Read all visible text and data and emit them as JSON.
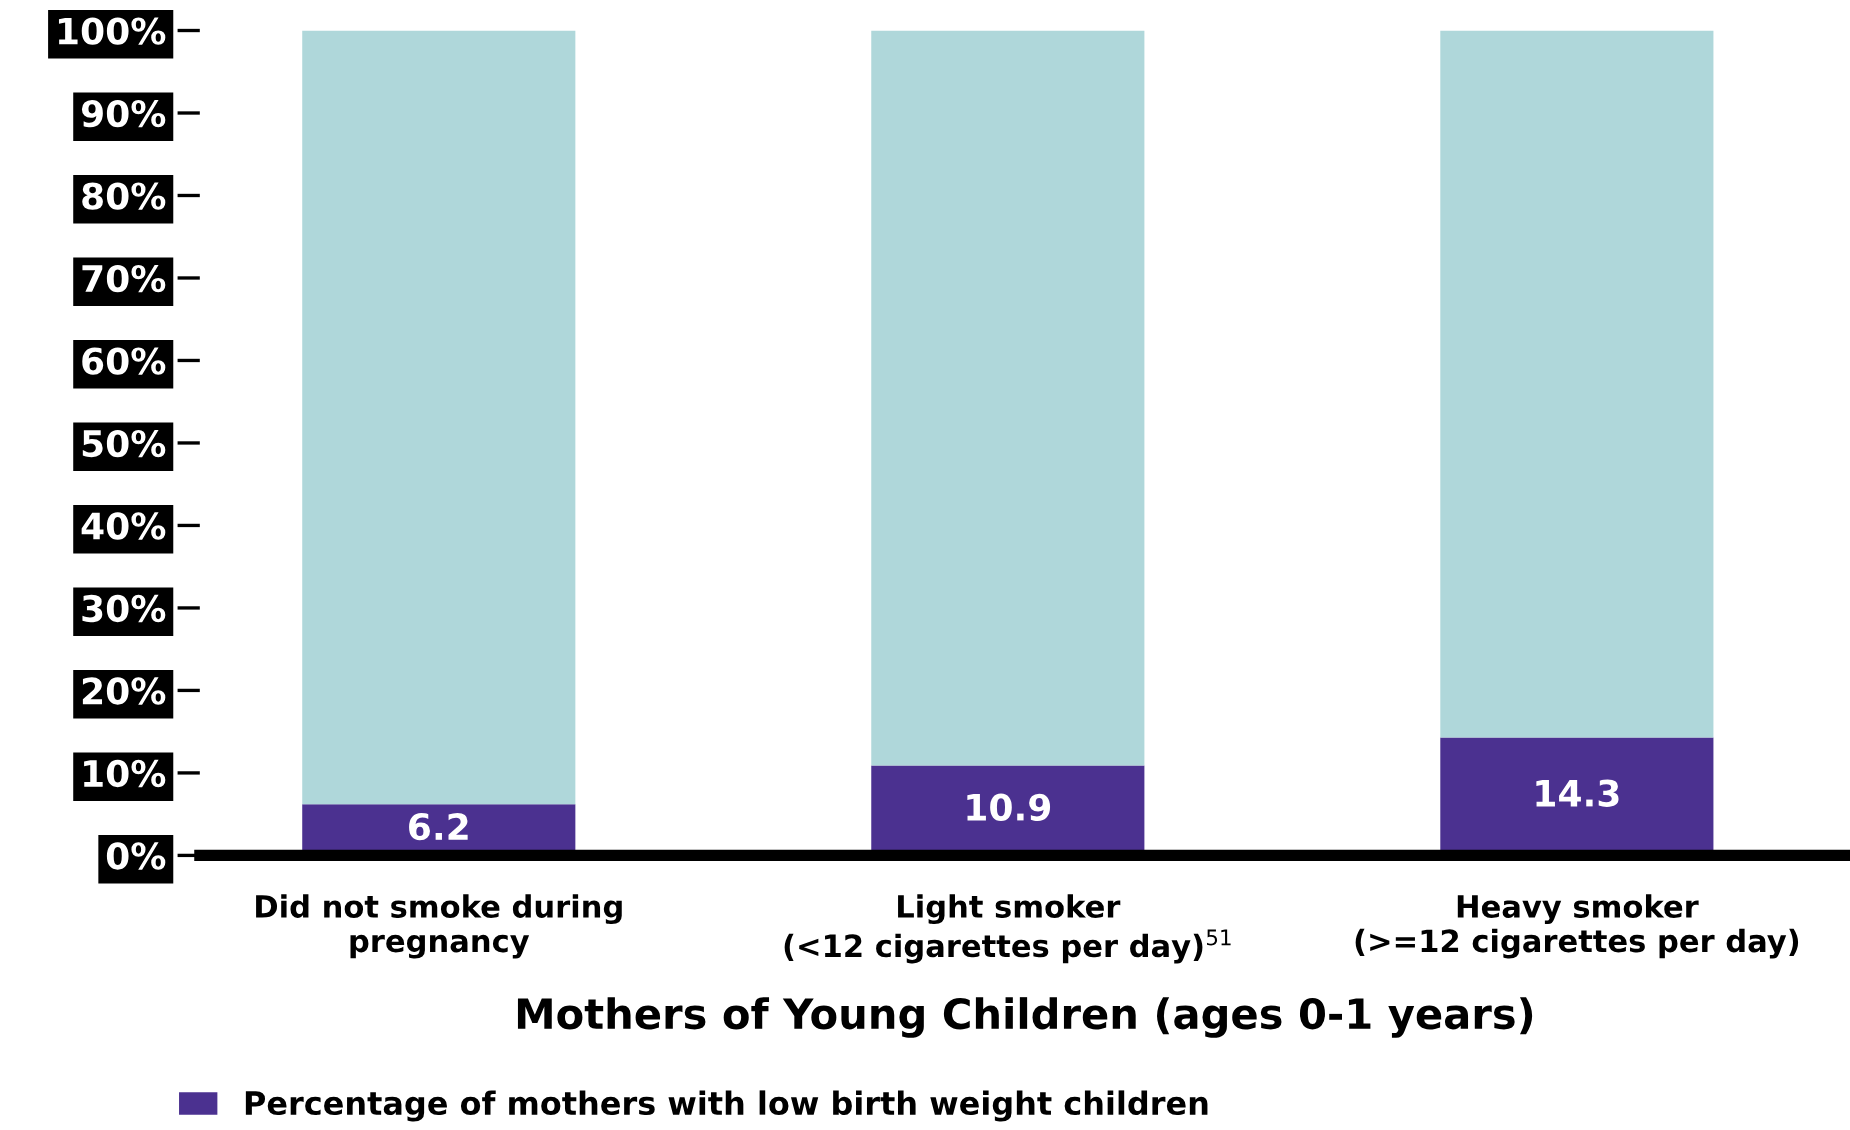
{
  "chart_data": {
    "type": "bar",
    "stacked": true,
    "xlabel": "Mothers of Young Children (ages 0-1 years)",
    "categories": [
      "Did not smoke during\npregnancy",
      "Light smoker\n(<12 cigarettes per day)$^{51}$",
      "Heavy smoker\n(>=12 cigarettes per day)"
    ],
    "series": [
      {
        "name": "Percentage of mothers with low birth weight children",
        "color": "#4b3190",
        "values": [
          6.2,
          10.9,
          14.3
        ],
        "value_labels": [
          "6.2",
          "10.9",
          "14.3"
        ]
      },
      {
        "color": "#afd7da",
        "values": [
          93.8,
          89.1,
          85.7
        ]
      }
    ],
    "ylim": [
      0,
      100
    ],
    "yticks": [
      {
        "value": 0,
        "label": "0%"
      },
      {
        "value": 10,
        "label": "10%"
      },
      {
        "value": 20,
        "label": "20%"
      },
      {
        "value": 30,
        "label": "30%"
      },
      {
        "value": 40,
        "label": "40%"
      },
      {
        "value": 50,
        "label": "50%"
      },
      {
        "value": 60,
        "label": "60%"
      },
      {
        "value": 70,
        "label": "70%"
      },
      {
        "value": 80,
        "label": "80%"
      },
      {
        "value": 90,
        "label": "90%"
      },
      {
        "value": 100,
        "label": "100%"
      }
    ],
    "legend": "bottom left"
  }
}
